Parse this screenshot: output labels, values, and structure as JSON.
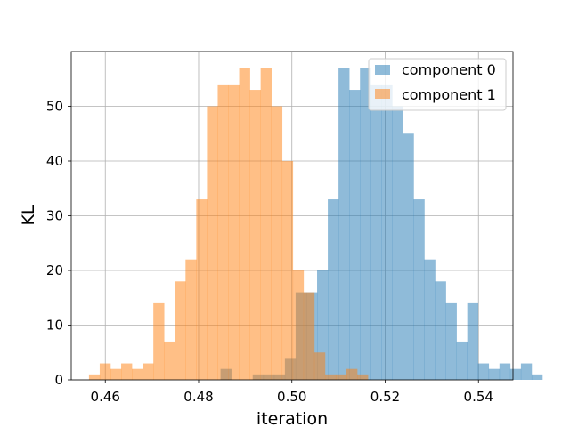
{
  "chart_data": {
    "type": "bar",
    "title": "",
    "xlabel": "iteration",
    "ylabel": "KL",
    "xlim": [
      0.4527,
      0.5474
    ],
    "ylim": [
      0,
      60
    ],
    "x_ticks": [
      0.46,
      0.48,
      0.5,
      0.52,
      0.54
    ],
    "x_tick_labels": [
      "0.46",
      "0.48",
      "0.50",
      "0.52",
      "0.54"
    ],
    "y_ticks": [
      0,
      10,
      20,
      30,
      40,
      50
    ],
    "y_tick_labels": [
      "0",
      "10",
      "20",
      "30",
      "40",
      "50"
    ],
    "grid": true,
    "legend_position": "top-right",
    "bin_width": 0.0023,
    "series": [
      {
        "name": "component 0",
        "color": "#1f77b4",
        "alpha": 0.5,
        "bin_start": 0.4847,
        "values": [
          2,
          0,
          0,
          1,
          1,
          1,
          4,
          16,
          16,
          20,
          33,
          57,
          53,
          57,
          54,
          54,
          50,
          45,
          33,
          22,
          18,
          14,
          7,
          14,
          3,
          2,
          3,
          2,
          3,
          1
        ]
      },
      {
        "name": "component 1",
        "color": "#ff7f0e",
        "alpha": 0.5,
        "bin_start": 0.4565,
        "values": [
          1,
          3,
          2,
          3,
          2,
          3,
          14,
          7,
          18,
          22,
          33,
          50,
          54,
          54,
          57,
          53,
          57,
          50,
          40,
          20,
          16,
          5,
          1,
          1,
          2,
          1
        ]
      }
    ]
  }
}
